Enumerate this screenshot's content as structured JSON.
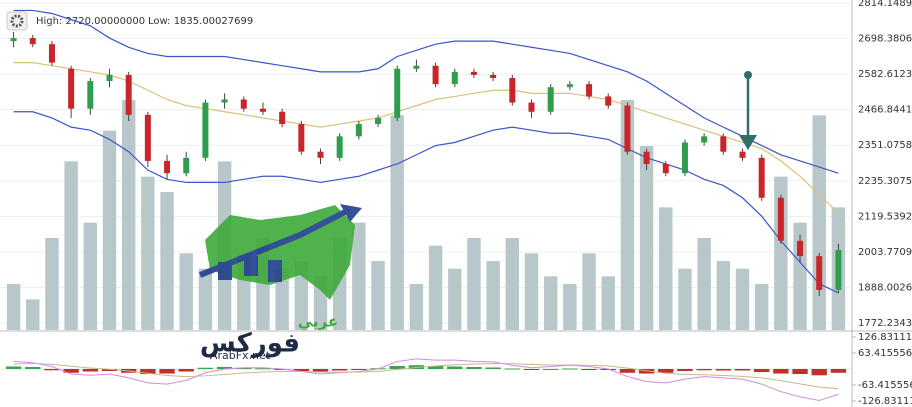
{
  "chart_data": [
    {
      "type": "candlestick",
      "annotations": [
        "High: 2720.00000000",
        "Low: 1835.00027699"
      ],
      "ylim": [
        1772.2343,
        2814.1489
      ],
      "yticks": [
        2814.1489,
        2698.3806,
        2582.6123,
        2466.8441,
        2351.0758,
        2235.3075,
        2119.5392,
        2003.7709,
        1888.0026,
        1772.2343
      ],
      "grid": true,
      "up_color": "#2e9e4e",
      "down_color": "#c8262a",
      "open": [
        2690,
        2700,
        2680,
        2600,
        2470,
        2560,
        2580,
        2450,
        2300,
        2260,
        2310,
        2490,
        2500,
        2470,
        2460,
        2420,
        2330,
        2310,
        2380,
        2420,
        2440,
        2600,
        2610,
        2550,
        2590,
        2580,
        2570,
        2490,
        2460,
        2540,
        2550,
        2510,
        2480,
        2330,
        2290,
        2260,
        2360,
        2380,
        2330,
        2310,
        2180,
        2040,
        1990,
        1880
      ],
      "high": [
        2720,
        2710,
        2690,
        2610,
        2570,
        2600,
        2590,
        2460,
        2320,
        2330,
        2500,
        2520,
        2510,
        2490,
        2470,
        2430,
        2340,
        2390,
        2430,
        2450,
        2610,
        2630,
        2620,
        2600,
        2600,
        2590,
        2580,
        2500,
        2550,
        2560,
        2560,
        2520,
        2490,
        2340,
        2300,
        2370,
        2390,
        2390,
        2340,
        2320,
        2190,
        2060,
        2000,
        2030
      ],
      "low": [
        2670,
        2670,
        2610,
        2440,
        2450,
        2540,
        2430,
        2280,
        2240,
        2250,
        2300,
        2470,
        2460,
        2450,
        2410,
        2320,
        2290,
        2300,
        2370,
        2410,
        2430,
        2590,
        2540,
        2540,
        2570,
        2560,
        2480,
        2440,
        2450,
        2530,
        2500,
        2470,
        2320,
        2270,
        2250,
        2250,
        2350,
        2320,
        2300,
        2170,
        2030,
        1970,
        1860,
        1870
      ],
      "close": [
        2700,
        2680,
        2620,
        2470,
        2560,
        2580,
        2450,
        2300,
        2260,
        2310,
        2490,
        2500,
        2470,
        2460,
        2420,
        2330,
        2310,
        2380,
        2420,
        2440,
        2600,
        2610,
        2550,
        2590,
        2580,
        2570,
        2490,
        2460,
        2540,
        2550,
        2510,
        2480,
        2330,
        2290,
        2260,
        2360,
        2380,
        2330,
        2310,
        2180,
        2040,
        1990,
        1880,
        2010
      ],
      "volume": [
        30,
        20,
        60,
        110,
        70,
        130,
        150,
        100,
        90,
        50,
        40,
        110,
        50,
        60,
        40,
        45,
        35,
        60,
        70,
        45,
        140,
        30,
        55,
        40,
        60,
        45,
        60,
        50,
        35,
        30,
        50,
        35,
        150,
        120,
        80,
        40,
        60,
        45,
        40,
        30,
        100,
        70,
        140,
        80
      ],
      "volume_color": "#b8c8ca",
      "upper_band": [
        2790,
        2790,
        2780,
        2760,
        2740,
        2700,
        2670,
        2650,
        2640,
        2640,
        2640,
        2640,
        2630,
        2620,
        2610,
        2600,
        2590,
        2590,
        2590,
        2600,
        2640,
        2660,
        2680,
        2690,
        2690,
        2690,
        2680,
        2670,
        2660,
        2650,
        2630,
        2610,
        2590,
        2560,
        2520,
        2480,
        2440,
        2410,
        2380,
        2350,
        2320,
        2300,
        2280,
        2260
      ],
      "middle_band": [
        2620,
        2620,
        2610,
        2600,
        2590,
        2580,
        2560,
        2530,
        2500,
        2480,
        2470,
        2460,
        2450,
        2440,
        2430,
        2420,
        2410,
        2420,
        2430,
        2440,
        2460,
        2480,
        2500,
        2510,
        2520,
        2530,
        2530,
        2520,
        2520,
        2520,
        2510,
        2500,
        2480,
        2460,
        2440,
        2420,
        2400,
        2380,
        2360,
        2340,
        2300,
        2250,
        2190,
        2130
      ],
      "lower_band": [
        2460,
        2460,
        2440,
        2410,
        2400,
        2370,
        2330,
        2270,
        2240,
        2230,
        2230,
        2230,
        2240,
        2250,
        2250,
        2240,
        2230,
        2240,
        2250,
        2270,
        2290,
        2320,
        2350,
        2360,
        2380,
        2400,
        2410,
        2400,
        2390,
        2390,
        2380,
        2370,
        2340,
        2310,
        2290,
        2270,
        2240,
        2220,
        2180,
        2120,
        2040,
        1970,
        1900,
        1870
      ],
      "band_color": "#3a55c8",
      "middle_color": "#d9c27a"
    },
    {
      "type": "macd",
      "ylim": [
        -126.831112,
        126.831112
      ],
      "yticks": [
        {
          "value": 126.831112,
          "label": "126.831112"
        },
        {
          "value": 63.415556,
          "label": "63.4155560"
        },
        {
          "value": -63.415556,
          "label": "-63.4155560"
        },
        -126.831112
      ],
      "histogram": [
        10,
        8,
        -5,
        -15,
        -10,
        -8,
        -15,
        -20,
        -18,
        -10,
        5,
        8,
        5,
        3,
        -2,
        -8,
        -10,
        -6,
        -2,
        3,
        12,
        15,
        12,
        10,
        8,
        6,
        2,
        -2,
        0,
        2,
        -1,
        -4,
        -15,
        -18,
        -15,
        -8,
        -5,
        -6,
        -6,
        -12,
        -18,
        -20,
        -25,
        -15
      ],
      "macd": [
        30,
        25,
        10,
        -20,
        -25,
        -20,
        -35,
        -55,
        -60,
        -45,
        -15,
        0,
        5,
        5,
        0,
        -10,
        -20,
        -15,
        -10,
        0,
        30,
        40,
        35,
        35,
        30,
        28,
        15,
        5,
        10,
        15,
        10,
        0,
        -30,
        -50,
        -55,
        -40,
        -30,
        -35,
        -40,
        -60,
        -90,
        -110,
        -125,
        -100
      ],
      "signal": [
        20,
        22,
        19,
        11,
        4,
        -1,
        -8,
        -17,
        -26,
        -30,
        -27,
        -22,
        -16,
        -12,
        -10,
        -10,
        -12,
        -13,
        -12,
        -10,
        -2,
        6,
        12,
        17,
        20,
        22,
        21,
        18,
        16,
        16,
        15,
        12,
        4,
        -7,
        -17,
        -22,
        -23,
        -26,
        -29,
        -35,
        -46,
        -59,
        -72,
        -78
      ],
      "up_color": "#3aa54a",
      "down_color": "#c0302b",
      "macd_color": "#d48be0",
      "signal_color": "#c8b98a"
    }
  ],
  "logo": {
    "arabic_top": "عربي",
    "arabic_main": "فوركس",
    "url": "ArabFx.net"
  }
}
